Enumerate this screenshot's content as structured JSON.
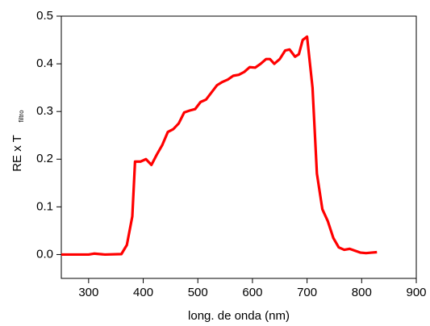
{
  "chart_data": {
    "type": "line",
    "xlabel": "long. de onda (nm)",
    "ylabel": "RE x T",
    "ylabel_sub": "filtro",
    "x": [
      250,
      300,
      310,
      330,
      360,
      370,
      380,
      385,
      395,
      405,
      415,
      425,
      435,
      445,
      455,
      465,
      475,
      485,
      495,
      505,
      515,
      525,
      535,
      545,
      555,
      565,
      575,
      585,
      595,
      605,
      615,
      625,
      632,
      640,
      650,
      660,
      668,
      678,
      685,
      692,
      700,
      710,
      718,
      728,
      738,
      748,
      758,
      768,
      778,
      788,
      798,
      808,
      818,
      828
    ],
    "series": [
      {
        "color": "#ff0000",
        "values": [
          0,
          0,
          0.002,
          0,
          0.001,
          0.02,
          0.08,
          0.195,
          0.195,
          0.2,
          0.188,
          0.21,
          0.23,
          0.257,
          0.263,
          0.275,
          0.298,
          0.302,
          0.305,
          0.32,
          0.325,
          0.34,
          0.355,
          0.362,
          0.367,
          0.375,
          0.377,
          0.383,
          0.393,
          0.392,
          0.4,
          0.41,
          0.41,
          0.4,
          0.41,
          0.428,
          0.43,
          0.415,
          0.42,
          0.45,
          0.457,
          0.35,
          0.17,
          0.095,
          0.07,
          0.035,
          0.015,
          0.01,
          0.012,
          0.008,
          0.004,
          0.003,
          0.004,
          0.005
        ]
      }
    ],
    "xlim": [
      250,
      900
    ],
    "xticks": [
      300,
      400,
      500,
      600,
      700,
      800,
      900
    ],
    "ylim": [
      -0.05,
      0.5
    ],
    "yticks": [
      {
        "value": 0,
        "label": "0.0"
      },
      0.1,
      0.2,
      0.3,
      0.4,
      0.5
    ]
  }
}
